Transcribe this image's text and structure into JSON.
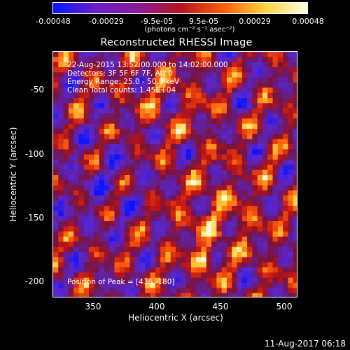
{
  "colorbar": {
    "labels": [
      "-0.00048",
      "-0.00029",
      "-9.5e-05",
      "9.5e-05",
      "0.00029",
      "0.00048"
    ],
    "units": "(photons cm⁻² s⁻¹ asec⁻²)",
    "colors": [
      "#0a14ff",
      "#6a1ec8",
      "#8a1a9a",
      "#b4141e",
      "#ff5a0a",
      "#ffd23c",
      "#ffffe6"
    ]
  },
  "chart_data": {
    "type": "heatmap",
    "title": "Reconstructed RHESSI Image",
    "xlabel": "Heliocentric X (arcsec)",
    "ylabel": "Heliocentric Y (arcsec)",
    "xlim": [
      320,
      512
    ],
    "ylim": [
      -212,
      -20
    ],
    "xticks": [
      "350",
      "400",
      "450",
      "500"
    ],
    "yticks": [
      "-50",
      "-100",
      "-150",
      "-200"
    ],
    "vmin": -0.00048,
    "vmax": 0.00048,
    "peak": {
      "x": 436,
      "y": -180
    },
    "info": [
      "22-Aug-2015 13:52:00.000 to 14:02:00.000",
      "Detectors: 3F 5F 6F 7F, Att 0",
      "Energy Range: 25.0 - 50.0 keV",
      "Clean     Total counts: 1.45E+04"
    ],
    "peak_label": "Position of Peak = [436,-180]"
  },
  "footer": "11-Aug-2017 06:18"
}
